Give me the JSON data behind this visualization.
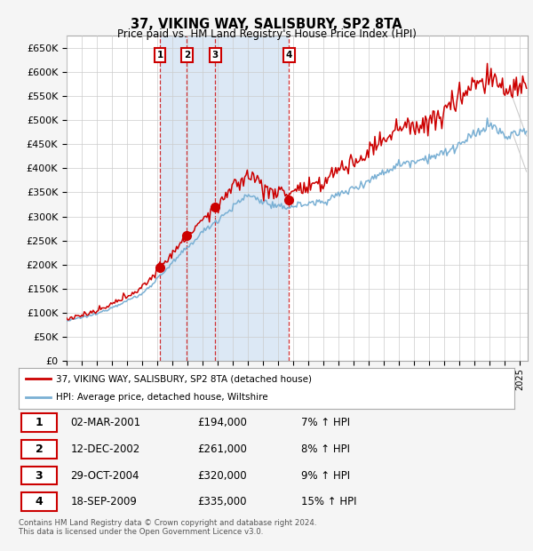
{
  "title": "37, VIKING WAY, SALISBURY, SP2 8TA",
  "subtitle": "Price paid vs. HM Land Registry's House Price Index (HPI)",
  "xlim": [
    1995.0,
    2025.5
  ],
  "ylim": [
    0,
    675000
  ],
  "yticks": [
    0,
    50000,
    100000,
    150000,
    200000,
    250000,
    300000,
    350000,
    400000,
    450000,
    500000,
    550000,
    600000,
    650000
  ],
  "sale_dates": [
    2001.17,
    2002.96,
    2004.83,
    2009.72
  ],
  "sale_prices": [
    194000,
    261000,
    320000,
    335000
  ],
  "sale_labels": [
    "1",
    "2",
    "3",
    "4"
  ],
  "sale_color": "#cc0000",
  "hpi_color": "#7ab0d4",
  "legend_entries": [
    "37, VIKING WAY, SALISBURY, SP2 8TA (detached house)",
    "HPI: Average price, detached house, Wiltshire"
  ],
  "table_rows": [
    [
      "1",
      "02-MAR-2001",
      "£194,000",
      "7% ↑ HPI"
    ],
    [
      "2",
      "12-DEC-2002",
      "£261,000",
      "8% ↑ HPI"
    ],
    [
      "3",
      "29-OCT-2004",
      "£320,000",
      "9% ↑ HPI"
    ],
    [
      "4",
      "18-SEP-2009",
      "£335,000",
      "15% ↑ HPI"
    ]
  ],
  "footer": "Contains HM Land Registry data © Crown copyright and database right 2024.\nThis data is licensed under the Open Government Licence v3.0.",
  "background_color": "#f5f5f5",
  "plot_bg": "#ffffff",
  "shade_color": "#dce8f5",
  "grid_color": "#cccccc"
}
